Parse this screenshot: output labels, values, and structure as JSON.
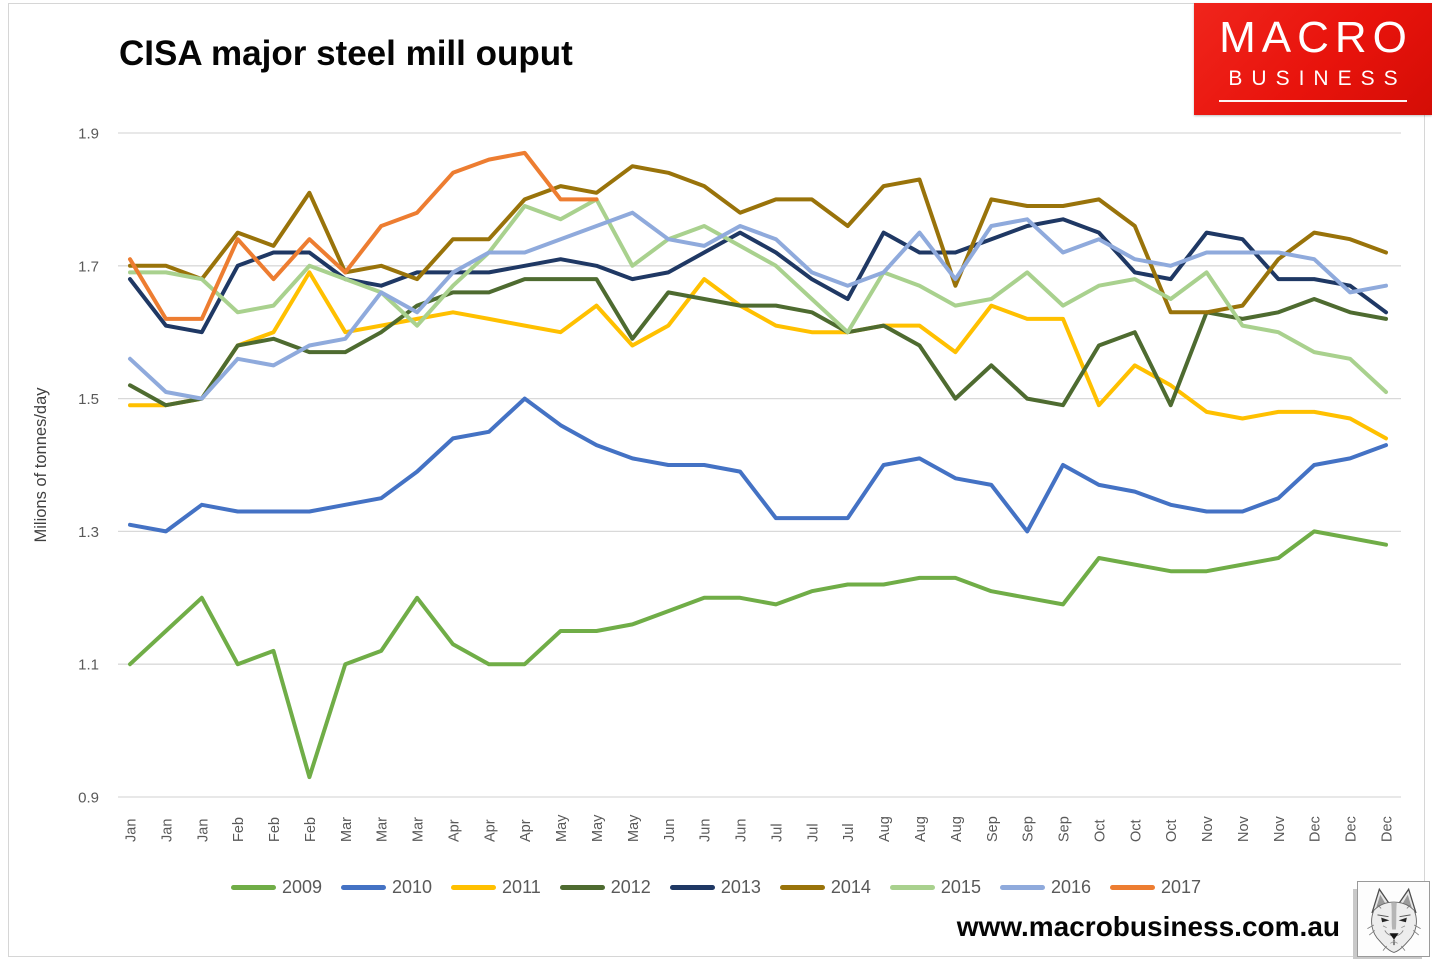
{
  "title": "CISA major steel mill ouput",
  "logo": {
    "line1": "MACRO",
    "line2": "BUSINESS"
  },
  "footer": {
    "website": "www.macrobusiness.com.au",
    "logo_icon": "wolf-sketch"
  },
  "axis_colors": {
    "gridline": "#d9d9d9",
    "tick_label": "#595959",
    "axis_title": "#404040"
  },
  "chart_data": {
    "type": "line",
    "title": "CISA major steel mill ouput",
    "xlabel": "",
    "ylabel": "Milions of tonnes/day",
    "ylim": [
      0.9,
      1.9
    ],
    "yticks": [
      1.9,
      1.7,
      1.5,
      1.3,
      1.1,
      0.9
    ],
    "grid": "horizontal",
    "legend_position": "bottom",
    "x_labels": [
      "Jan",
      "Jan",
      "Jan",
      "Feb",
      "Feb",
      "Feb",
      "Mar",
      "Mar",
      "Mar",
      "Apr",
      "Apr",
      "Apr",
      "May",
      "May",
      "May",
      "Jun",
      "Jun",
      "Jun",
      "Jul",
      "Jul",
      "Jul",
      "Aug",
      "Aug",
      "Aug",
      "Sep",
      "Sep",
      "Sep",
      "Oct",
      "Oct",
      "Oct",
      "Nov",
      "Nov",
      "Nov",
      "Dec",
      "Dec",
      "Dec"
    ],
    "series": [
      {
        "name": "2009",
        "color": "#70AD47",
        "values": [
          1.1,
          1.15,
          1.2,
          1.1,
          1.12,
          0.93,
          1.1,
          1.12,
          1.2,
          1.13,
          1.1,
          1.1,
          1.15,
          1.15,
          1.16,
          1.18,
          1.2,
          1.2,
          1.19,
          1.21,
          1.22,
          1.22,
          1.23,
          1.23,
          1.21,
          1.2,
          1.19,
          1.26,
          1.25,
          1.24,
          1.24,
          1.25,
          1.26,
          1.3,
          1.29,
          1.28
        ]
      },
      {
        "name": "2010",
        "color": "#4472C4",
        "values": [
          1.31,
          1.3,
          1.34,
          1.33,
          1.33,
          1.33,
          1.34,
          1.35,
          1.39,
          1.44,
          1.45,
          1.5,
          1.46,
          1.43,
          1.41,
          1.4,
          1.4,
          1.39,
          1.32,
          1.32,
          1.32,
          1.4,
          1.41,
          1.38,
          1.37,
          1.3,
          1.4,
          1.37,
          1.36,
          1.34,
          1.33,
          1.33,
          1.35,
          1.4,
          1.41,
          1.43
        ]
      },
      {
        "name": "2011",
        "color": "#FFC000",
        "values": [
          1.49,
          1.49,
          1.5,
          1.58,
          1.6,
          1.69,
          1.6,
          1.61,
          1.62,
          1.63,
          1.62,
          1.61,
          1.6,
          1.64,
          1.58,
          1.61,
          1.68,
          1.64,
          1.61,
          1.6,
          1.6,
          1.61,
          1.61,
          1.57,
          1.64,
          1.62,
          1.62,
          1.49,
          1.55,
          1.52,
          1.48,
          1.47,
          1.48,
          1.48,
          1.47,
          1.44
        ]
      },
      {
        "name": "2012",
        "color": "#4E6B30",
        "values": [
          1.52,
          1.49,
          1.5,
          1.58,
          1.59,
          1.57,
          1.57,
          1.6,
          1.64,
          1.66,
          1.66,
          1.68,
          1.68,
          1.68,
          1.59,
          1.66,
          1.65,
          1.64,
          1.64,
          1.63,
          1.6,
          1.61,
          1.58,
          1.5,
          1.55,
          1.5,
          1.49,
          1.58,
          1.6,
          1.49,
          1.63,
          1.62,
          1.63,
          1.65,
          1.63,
          1.62
        ]
      },
      {
        "name": "2013",
        "color": "#1F3864",
        "values": [
          1.68,
          1.61,
          1.6,
          1.7,
          1.72,
          1.72,
          1.68,
          1.67,
          1.69,
          1.69,
          1.69,
          1.7,
          1.71,
          1.7,
          1.68,
          1.69,
          1.72,
          1.75,
          1.72,
          1.68,
          1.65,
          1.75,
          1.72,
          1.72,
          1.74,
          1.76,
          1.77,
          1.75,
          1.69,
          1.68,
          1.75,
          1.74,
          1.68,
          1.68,
          1.67,
          1.63
        ]
      },
      {
        "name": "2014",
        "color": "#99730A",
        "values": [
          1.7,
          1.7,
          1.68,
          1.75,
          1.73,
          1.81,
          1.69,
          1.7,
          1.68,
          1.74,
          1.74,
          1.8,
          1.82,
          1.81,
          1.85,
          1.84,
          1.82,
          1.78,
          1.8,
          1.8,
          1.76,
          1.82,
          1.83,
          1.67,
          1.8,
          1.79,
          1.79,
          1.8,
          1.76,
          1.63,
          1.63,
          1.64,
          1.71,
          1.75,
          1.74,
          1.72
        ]
      },
      {
        "name": "2015",
        "color": "#A9D18E",
        "values": [
          1.69,
          1.69,
          1.68,
          1.63,
          1.64,
          1.7,
          1.68,
          1.66,
          1.61,
          1.67,
          1.72,
          1.79,
          1.77,
          1.8,
          1.7,
          1.74,
          1.76,
          1.73,
          1.7,
          1.65,
          1.6,
          1.69,
          1.67,
          1.64,
          1.65,
          1.69,
          1.64,
          1.67,
          1.68,
          1.65,
          1.69,
          1.61,
          1.6,
          1.57,
          1.56,
          1.51
        ]
      },
      {
        "name": "2016",
        "color": "#8FAADC",
        "values": [
          1.56,
          1.51,
          1.5,
          1.56,
          1.55,
          1.58,
          1.59,
          1.66,
          1.63,
          1.69,
          1.72,
          1.72,
          1.74,
          1.76,
          1.78,
          1.74,
          1.73,
          1.76,
          1.74,
          1.69,
          1.67,
          1.69,
          1.75,
          1.68,
          1.76,
          1.77,
          1.72,
          1.74,
          1.71,
          1.7,
          1.72,
          1.72,
          1.72,
          1.71,
          1.66,
          1.67
        ]
      },
      {
        "name": "2017",
        "color": "#ED7D31",
        "values": [
          1.71,
          1.62,
          1.62,
          1.74,
          1.68,
          1.74,
          1.69,
          1.76,
          1.78,
          1.84,
          1.86,
          1.87,
          1.8,
          1.8
        ]
      }
    ]
  }
}
